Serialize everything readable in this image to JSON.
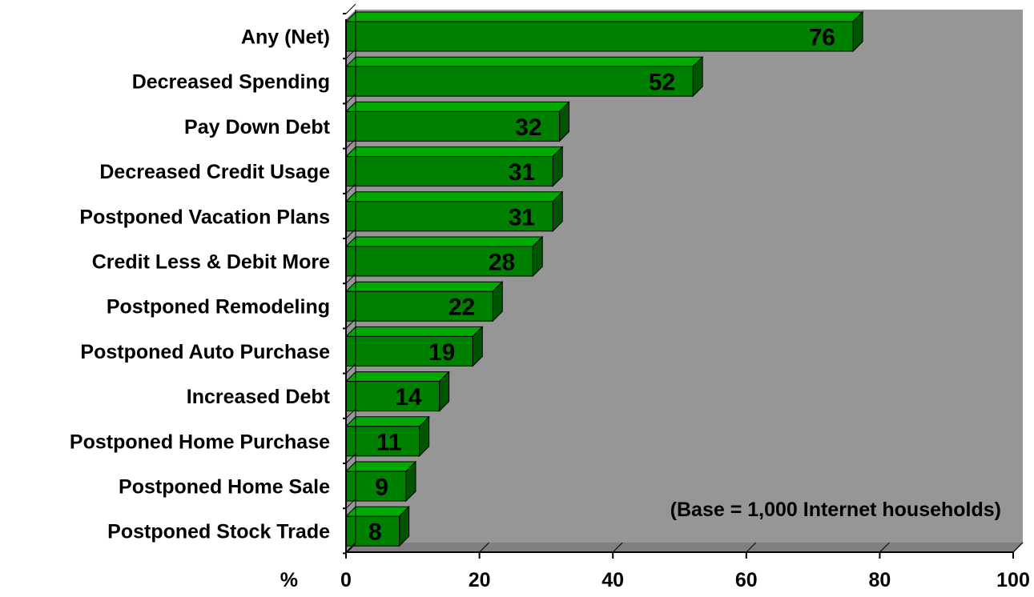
{
  "chart_data": {
    "type": "bar",
    "orientation": "horizontal",
    "categories": [
      "Any (Net)",
      "Decreased Spending",
      "Pay Down Debt",
      "Decreased Credit Usage",
      "Postponed Vacation Plans",
      "Credit Less & Debit More",
      "Postponed Remodeling",
      "Postponed Auto Purchase",
      "Increased Debt",
      "Postponed Home Purchase",
      "Postponed Home Sale",
      "Postponed Stock Trade"
    ],
    "values": [
      76,
      52,
      32,
      31,
      31,
      28,
      22,
      19,
      14,
      11,
      9,
      8
    ],
    "xlabel": "%",
    "xlim": [
      0,
      100
    ],
    "x_ticks": [
      0,
      20,
      40,
      60,
      80,
      100
    ],
    "annotation": "(Base = 1,000 Internet households)",
    "grid": false,
    "legend": "none",
    "colors": {
      "bar_front": "#008000",
      "bar_top": "#00aa00",
      "bar_side": "#005500",
      "plot_background": "#969696",
      "axis": "#000000"
    }
  }
}
